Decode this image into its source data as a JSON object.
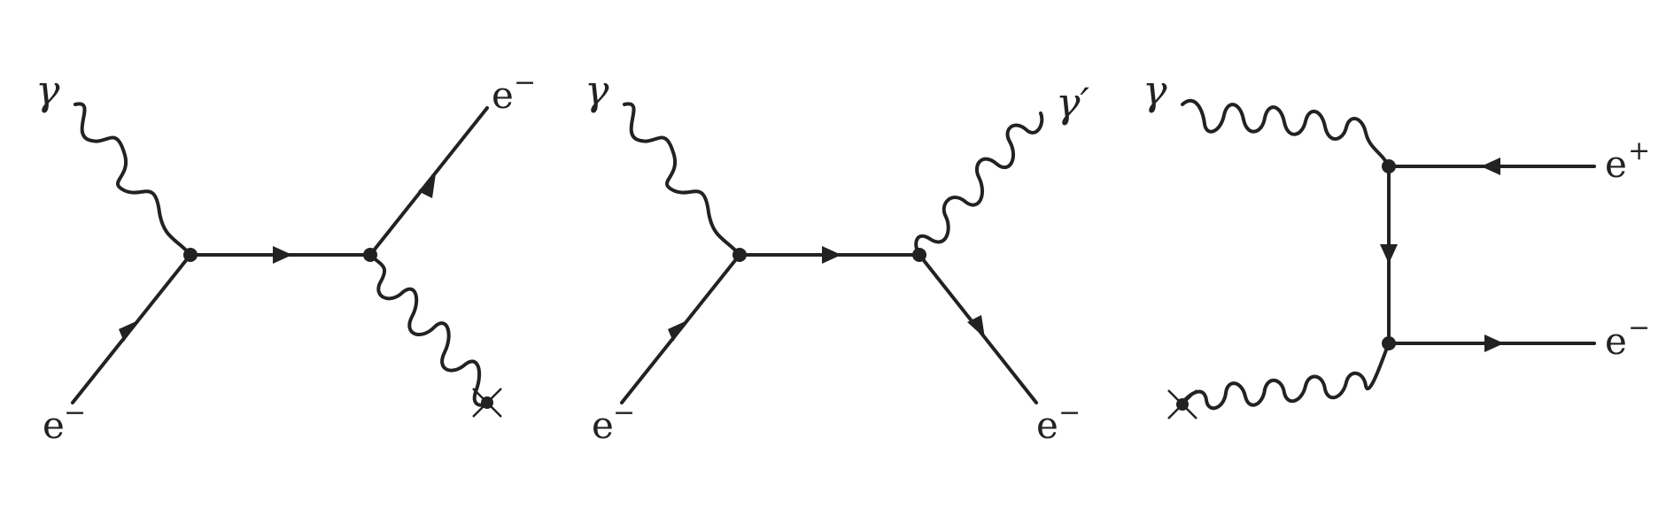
{
  "diagrams": [
    {
      "labels": {
        "photon_in": "γ",
        "electron_in_base": "e",
        "electron_in_sup": "−",
        "electron_out_base": "e",
        "electron_out_sup": "−"
      }
    },
    {
      "labels": {
        "photon_in": "γ",
        "photon_out": "γ′",
        "electron_in_base": "e",
        "electron_in_sup": "−",
        "electron_out_base": "e",
        "electron_out_sup": "−"
      }
    },
    {
      "labels": {
        "photon_in": "γ",
        "positron_base": "e",
        "positron_sup": "+",
        "electron_base": "e",
        "electron_sup": "−"
      }
    }
  ],
  "colors": {
    "ink": "#222222",
    "background": "#ffffff"
  }
}
